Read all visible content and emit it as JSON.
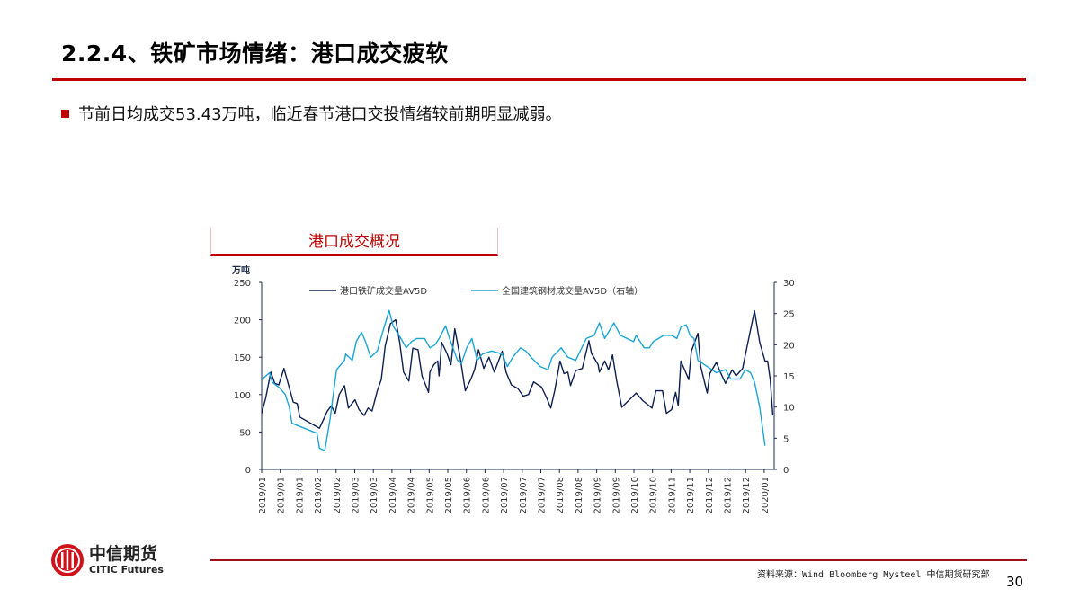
{
  "header": {
    "title": "2.2.4、铁矿市场情绪：港口成交疲软"
  },
  "bullet": {
    "text": "节前日均成交53.43万吨，临近春节港口交投情绪较前期明显减弱。"
  },
  "colors": {
    "accent": "#c00000",
    "series_dark": "#0d1f4f",
    "series_light": "#1aa5d6"
  },
  "chart_data": {
    "type": "line",
    "title": "港口成交概况",
    "ylabel": "万吨",
    "ylim": [
      0,
      250
    ],
    "y_ticks": [
      "0",
      "50",
      "100",
      "150",
      "200",
      "250"
    ],
    "y2lim": [
      0,
      30
    ],
    "y2_ticks": [
      "0",
      "5",
      "10",
      "15",
      "20",
      "25",
      "30"
    ],
    "xlim": [
      "2019-01-02",
      "2020-01-27"
    ],
    "x_tick_labels": [
      "2019/01",
      "2019/01",
      "2019/01",
      "2019/02",
      "2019/02",
      "2019/03",
      "2019/03",
      "2019/04",
      "2019/04",
      "2019/05",
      "2019/05",
      "2019/06",
      "2019/06",
      "2019/07",
      "2019/07",
      "2019/07",
      "2019/08",
      "2019/08",
      "2019/09",
      "2019/09",
      "2019/10",
      "2019/10",
      "2019/11",
      "2019/11",
      "2019/12",
      "2019/12",
      "2019/12",
      "2020/01"
    ],
    "legend_position": "top",
    "grid": false,
    "series": [
      {
        "name": "港口铁矿成交量AV5D",
        "axis": "left",
        "points": [
          [
            "2019-01-02",
            75
          ],
          [
            "2019-01-05",
            95
          ],
          [
            "2019-01-09",
            130
          ],
          [
            "2019-01-12",
            115
          ],
          [
            "2019-01-15",
            113
          ],
          [
            "2019-01-19",
            135
          ],
          [
            "2019-01-26",
            90
          ],
          [
            "2019-01-29",
            88
          ],
          [
            "2019-01-31",
            70
          ],
          [
            "2019-02-13",
            57
          ],
          [
            "2019-02-15",
            55
          ],
          [
            "2019-02-21",
            78
          ],
          [
            "2019-02-24",
            85
          ],
          [
            "2019-02-27",
            75
          ],
          [
            "2019-03-02",
            100
          ],
          [
            "2019-03-06",
            112
          ],
          [
            "2019-03-09",
            82
          ],
          [
            "2019-03-14",
            93
          ],
          [
            "2019-03-17",
            80
          ],
          [
            "2019-03-21",
            72
          ],
          [
            "2019-03-24",
            82
          ],
          [
            "2019-03-27",
            78
          ],
          [
            "2019-03-31",
            105
          ],
          [
            "2019-04-03",
            120
          ],
          [
            "2019-04-06",
            165
          ],
          [
            "2019-04-10",
            195
          ],
          [
            "2019-04-14",
            200
          ],
          [
            "2019-04-17",
            170
          ],
          [
            "2019-04-20",
            130
          ],
          [
            "2019-04-24",
            118
          ],
          [
            "2019-04-27",
            162
          ],
          [
            "2019-05-01",
            160
          ],
          [
            "2019-05-04",
            125
          ],
          [
            "2019-05-09",
            103
          ],
          [
            "2019-05-10",
            130
          ],
          [
            "2019-05-13",
            140
          ],
          [
            "2019-05-16",
            145
          ],
          [
            "2019-05-17",
            125
          ],
          [
            "2019-05-19",
            170
          ],
          [
            "2019-05-23",
            155
          ],
          [
            "2019-05-26",
            140
          ],
          [
            "2019-05-29",
            188
          ],
          [
            "2019-06-02",
            150
          ],
          [
            "2019-06-06",
            105
          ],
          [
            "2019-06-10",
            120
          ],
          [
            "2019-06-13",
            133
          ],
          [
            "2019-06-16",
            160
          ],
          [
            "2019-06-20",
            135
          ],
          [
            "2019-06-24",
            150
          ],
          [
            "2019-06-28",
            130
          ],
          [
            "2019-07-04",
            158
          ],
          [
            "2019-07-07",
            130
          ],
          [
            "2019-07-11",
            113
          ],
          [
            "2019-07-16",
            108
          ],
          [
            "2019-07-20",
            98
          ],
          [
            "2019-07-24",
            100
          ],
          [
            "2019-07-28",
            117
          ],
          [
            "2019-08-03",
            110
          ],
          [
            "2019-08-07",
            95
          ],
          [
            "2019-08-10",
            82
          ],
          [
            "2019-08-13",
            105
          ],
          [
            "2019-08-17",
            145
          ],
          [
            "2019-08-20",
            128
          ],
          [
            "2019-08-23",
            130
          ],
          [
            "2019-08-25",
            112
          ],
          [
            "2019-08-29",
            132
          ],
          [
            "2019-09-03",
            135
          ],
          [
            "2019-09-08",
            172
          ],
          [
            "2019-09-10",
            155
          ],
          [
            "2019-09-15",
            140
          ],
          [
            "2019-09-16",
            130
          ],
          [
            "2019-09-20",
            145
          ],
          [
            "2019-09-23",
            133
          ],
          [
            "2019-09-26",
            153
          ],
          [
            "2019-09-29",
            120
          ],
          [
            "2019-10-03",
            83
          ],
          [
            "2019-10-14",
            102
          ],
          [
            "2019-10-19",
            92
          ],
          [
            "2019-10-26",
            82
          ],
          [
            "2019-10-29",
            105
          ],
          [
            "2019-11-03",
            105
          ],
          [
            "2019-11-06",
            75
          ],
          [
            "2019-11-10",
            80
          ],
          [
            "2019-11-13",
            103
          ],
          [
            "2019-11-15",
            85
          ],
          [
            "2019-11-17",
            145
          ],
          [
            "2019-11-23",
            120
          ],
          [
            "2019-11-25",
            158
          ],
          [
            "2019-11-30",
            182
          ],
          [
            "2019-12-02",
            138
          ],
          [
            "2019-12-07",
            102
          ],
          [
            "2019-12-09",
            128
          ],
          [
            "2019-12-14",
            143
          ],
          [
            "2019-12-17",
            130
          ],
          [
            "2019-12-21",
            115
          ],
          [
            "2019-12-26",
            133
          ],
          [
            "2019-12-29",
            125
          ],
          [
            "2020-01-03",
            135
          ],
          [
            "2020-01-07",
            170
          ],
          [
            "2020-01-12",
            212
          ],
          [
            "2020-01-16",
            170
          ],
          [
            "2020-01-20",
            145
          ],
          [
            "2020-01-22",
            145
          ],
          [
            "2020-01-24",
            120
          ],
          [
            "2020-01-26",
            72
          ]
        ]
      },
      {
        "name": "全国建筑钢材成交量AV5D（右轴）",
        "axis": "right",
        "points": [
          [
            "2019-01-02",
            14.4
          ],
          [
            "2019-01-08",
            15.5
          ],
          [
            "2019-01-10",
            14
          ],
          [
            "2019-01-16",
            13
          ],
          [
            "2019-01-20",
            12
          ],
          [
            "2019-01-23",
            10
          ],
          [
            "2019-01-25",
            7.4
          ],
          [
            "2019-02-13",
            5.8
          ],
          [
            "2019-02-15",
            3.4
          ],
          [
            "2019-02-19",
            3
          ],
          [
            "2019-02-23",
            8
          ],
          [
            "2019-02-28",
            16
          ],
          [
            "2019-03-06",
            17.5
          ],
          [
            "2019-03-07",
            18.5
          ],
          [
            "2019-03-12",
            17.5
          ],
          [
            "2019-03-15",
            20.5
          ],
          [
            "2019-03-19",
            22
          ],
          [
            "2019-03-22",
            20.5
          ],
          [
            "2019-03-26",
            18
          ],
          [
            "2019-03-31",
            19
          ],
          [
            "2019-04-04",
            22
          ],
          [
            "2019-04-09",
            25.5
          ],
          [
            "2019-04-12",
            23
          ],
          [
            "2019-04-18",
            21
          ],
          [
            "2019-04-22",
            19.5
          ],
          [
            "2019-04-26",
            20.5
          ],
          [
            "2019-04-30",
            21
          ],
          [
            "2019-05-06",
            21
          ],
          [
            "2019-05-10",
            19.5
          ],
          [
            "2019-05-14",
            20
          ],
          [
            "2019-05-17",
            21
          ],
          [
            "2019-05-22",
            23
          ],
          [
            "2019-05-25",
            21
          ],
          [
            "2019-05-31",
            17.5
          ],
          [
            "2019-06-03",
            17
          ],
          [
            "2019-06-07",
            19.5
          ],
          [
            "2019-06-11",
            21
          ],
          [
            "2019-06-15",
            17.5
          ],
          [
            "2019-06-19",
            18.5
          ],
          [
            "2019-06-26",
            19
          ],
          [
            "2019-07-04",
            18.5
          ],
          [
            "2019-07-08",
            16.5
          ],
          [
            "2019-07-12",
            18
          ],
          [
            "2019-07-18",
            19.5
          ],
          [
            "2019-07-22",
            19
          ],
          [
            "2019-07-26",
            18
          ],
          [
            "2019-08-02",
            16.5
          ],
          [
            "2019-08-08",
            16
          ],
          [
            "2019-08-11",
            18
          ],
          [
            "2019-08-18",
            19.5
          ],
          [
            "2019-08-23",
            18
          ],
          [
            "2019-08-29",
            17.5
          ],
          [
            "2019-09-06",
            21
          ],
          [
            "2019-09-12",
            21.5
          ],
          [
            "2019-09-16",
            23.5
          ],
          [
            "2019-09-20",
            21
          ],
          [
            "2019-09-27",
            23.5
          ],
          [
            "2019-10-02",
            21.5
          ],
          [
            "2019-10-12",
            20.5
          ],
          [
            "2019-10-14",
            21.5
          ],
          [
            "2019-10-20",
            19.5
          ],
          [
            "2019-10-24",
            19.5
          ],
          [
            "2019-10-27",
            20.5
          ],
          [
            "2019-11-04",
            21.5
          ],
          [
            "2019-11-10",
            21.5
          ],
          [
            "2019-11-14",
            21
          ],
          [
            "2019-11-17",
            22.8
          ],
          [
            "2019-11-21",
            23.2
          ],
          [
            "2019-11-24",
            21.5
          ],
          [
            "2019-11-27",
            21
          ],
          [
            "2019-11-30",
            17.5
          ],
          [
            "2019-12-07",
            16.5
          ],
          [
            "2019-12-14",
            15.5
          ],
          [
            "2019-12-21",
            16
          ],
          [
            "2019-12-25",
            14.5
          ],
          [
            "2020-01-01",
            14.5
          ],
          [
            "2020-01-05",
            16
          ],
          [
            "2020-01-09",
            15.5
          ],
          [
            "2020-01-12",
            14
          ],
          [
            "2020-01-16",
            10
          ],
          [
            "2020-01-20",
            3.8
          ]
        ]
      }
    ]
  },
  "footer": {
    "logo_cn": "中信期货",
    "logo_en": "CITIC Futures",
    "source": "资料来源：Wind Bloomberg Mysteel 中信期货研究部",
    "page_number": "30"
  }
}
